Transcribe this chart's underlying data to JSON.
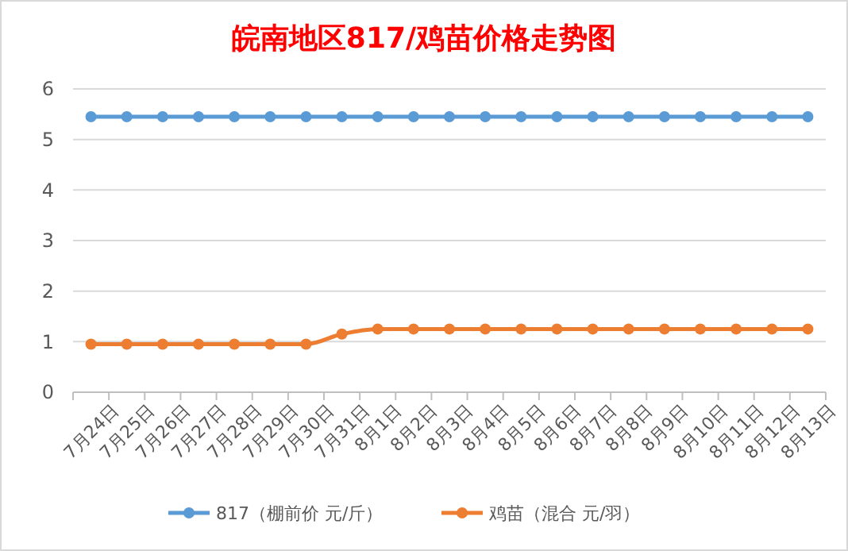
{
  "chart_data": {
    "type": "line",
    "title": "皖南地区817/鸡苗价格走势图",
    "categories": [
      "7月24日",
      "7月25日",
      "7月26日",
      "7月27日",
      "7月28日",
      "7月29日",
      "7月30日",
      "7月31日",
      "8月1日",
      "8月2日",
      "8月3日",
      "8月4日",
      "8月5日",
      "8月6日",
      "8月7日",
      "8月8日",
      "8月9日",
      "8月10日",
      "8月11日",
      "8月12日",
      "8月13日"
    ],
    "series": [
      {
        "name": "817（棚前价 元/斤）",
        "color": "#5b9bd5",
        "values": [
          5.45,
          5.45,
          5.45,
          5.45,
          5.45,
          5.45,
          5.45,
          5.45,
          5.45,
          5.45,
          5.45,
          5.45,
          5.45,
          5.45,
          5.45,
          5.45,
          5.45,
          5.45,
          5.45,
          5.45,
          5.45
        ]
      },
      {
        "name": "鸡苗（混合 元/羽）",
        "color": "#ed7d31",
        "values": [
          0.95,
          0.95,
          0.95,
          0.95,
          0.95,
          0.95,
          0.95,
          1.15,
          1.25,
          1.25,
          1.25,
          1.25,
          1.25,
          1.25,
          1.25,
          1.25,
          1.25,
          1.25,
          1.25,
          1.25,
          1.25
        ]
      }
    ],
    "ylim": [
      0,
      6
    ],
    "yticks": [
      0,
      1,
      2,
      3,
      4,
      5,
      6
    ],
    "grid": "y",
    "legend": "bottom",
    "marker": "circle",
    "line_style": "solid"
  }
}
